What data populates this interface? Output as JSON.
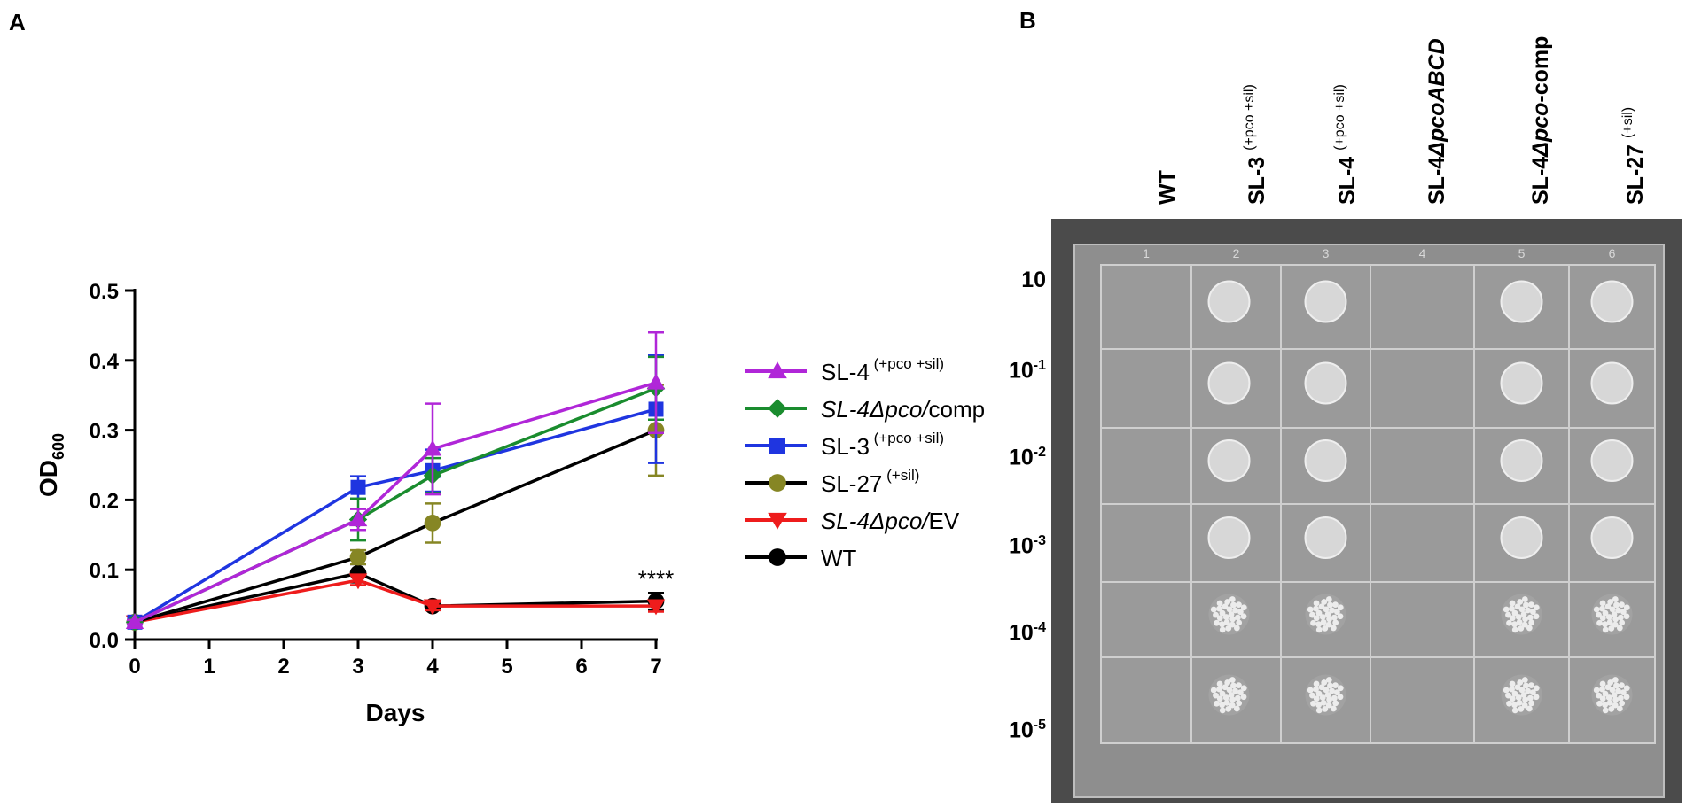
{
  "panel_a_label": "A",
  "panel_b_label": "B",
  "chart_data": {
    "type": "line",
    "xlabel": "Days",
    "ylabel_main": "OD",
    "ylabel_sub": "600",
    "xlim": [
      0,
      7
    ],
    "ylim": [
      0,
      0.5
    ],
    "x_ticks": [
      "0",
      "1",
      "2",
      "3",
      "4",
      "5",
      "6",
      "7"
    ],
    "y_ticks": [
      "0.0",
      "0.1",
      "0.2",
      "0.3",
      "0.4",
      "0.5"
    ],
    "annotation": "****",
    "series": [
      {
        "name": "SL-4",
        "sup": "(+pco +sil)",
        "italic_name": false,
        "suffix": "",
        "color": "#b026d8",
        "marker": "triangle-up",
        "x": [
          0,
          3,
          4,
          7
        ],
        "y": [
          0.025,
          0.172,
          0.273,
          0.368
        ],
        "err": [
          0.003,
          0.015,
          0.065,
          0.072
        ]
      },
      {
        "name": "SL-4Δpco/",
        "sup": "",
        "italic_name": true,
        "suffix": "comp",
        "color": "#1a8c2e",
        "marker": "diamond",
        "x": [
          0,
          3,
          4,
          7
        ],
        "y": [
          0.025,
          0.172,
          0.235,
          0.36
        ],
        "err": [
          0.003,
          0.03,
          0.025,
          0.045
        ]
      },
      {
        "name": "SL-3",
        "sup": "(+pco +sil)",
        "italic_name": false,
        "suffix": "",
        "color": "#1f35e0",
        "marker": "square",
        "x": [
          0,
          3,
          4,
          7
        ],
        "y": [
          0.025,
          0.218,
          0.242,
          0.33
        ],
        "err": [
          0.003,
          0.016,
          0.03,
          0.077
        ]
      },
      {
        "name": "SL-27",
        "sup": "(+sil)",
        "italic_name": false,
        "suffix": "",
        "color": "#868624",
        "line_color": "#000000",
        "marker": "circle",
        "x": [
          0,
          3,
          4,
          7
        ],
        "y": [
          0.025,
          0.118,
          0.167,
          0.3
        ],
        "err": [
          0.003,
          0.01,
          0.028,
          0.065
        ]
      },
      {
        "name": "SL-4Δpco/",
        "sup": "",
        "italic_name": true,
        "suffix": "EV",
        "color": "#ee1c1c",
        "marker": "triangle-down",
        "x": [
          0,
          3,
          4,
          7
        ],
        "y": [
          0.025,
          0.085,
          0.048,
          0.048
        ],
        "err": [
          0.003,
          0.007,
          0.006,
          0.008
        ]
      },
      {
        "name": "WT",
        "sup": "",
        "italic_name": false,
        "suffix": "",
        "color": "#000000",
        "marker": "circle",
        "x": [
          0,
          3,
          4,
          7
        ],
        "y": [
          0.025,
          0.095,
          0.048,
          0.055
        ],
        "err": [
          0.003,
          0.013,
          0.005,
          0.012
        ]
      }
    ]
  },
  "plate": {
    "columns": [
      {
        "main": "WT",
        "italic": "",
        "tail": "",
        "sup": ""
      },
      {
        "main": "SL-3 ",
        "italic": "",
        "tail": "",
        "sup": "(+pco +sil)"
      },
      {
        "main": "SL-4 ",
        "italic": "",
        "tail": "",
        "sup": "(+pco +sil)"
      },
      {
        "main": "SL-4",
        "italic": "ΔpcoABCD",
        "tail": "",
        "sup": ""
      },
      {
        "main": "SL-4",
        "italic": "Δpco",
        "tail": "-comp",
        "sup": ""
      },
      {
        "main": "SL-27 ",
        "italic": "",
        "tail": "",
        "sup": "(+sil)"
      }
    ],
    "column_numbers": [
      "1",
      "2",
      "3",
      "4",
      "5",
      "6"
    ],
    "rows": [
      {
        "base": "10",
        "exp": ""
      },
      {
        "base": "10",
        "exp": "-1"
      },
      {
        "base": "10",
        "exp": "-2"
      },
      {
        "base": "10",
        "exp": "-3"
      },
      {
        "base": "10",
        "exp": "-4"
      },
      {
        "base": "10",
        "exp": "-5"
      }
    ],
    "growth": [
      [
        0,
        2,
        2,
        0,
        2,
        2
      ],
      [
        0,
        2,
        2,
        0,
        2,
        2
      ],
      [
        0,
        2,
        2,
        0,
        2,
        2
      ],
      [
        0,
        2,
        2,
        0,
        2,
        2
      ],
      [
        0,
        1,
        1,
        0,
        1,
        1
      ],
      [
        0,
        1,
        1,
        0,
        1,
        1
      ]
    ]
  }
}
